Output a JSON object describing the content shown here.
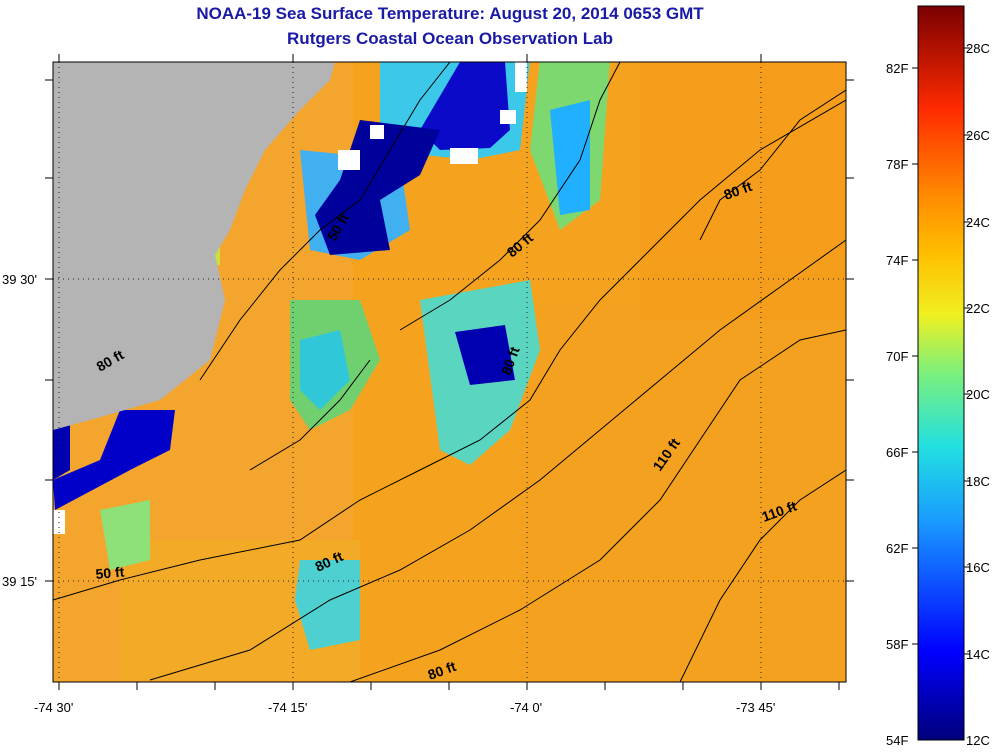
{
  "header": {
    "title": "NOAA-19 Sea Surface Temperature:  August 20, 2014 0653 GMT",
    "subtitle": "Rutgers Coastal Ocean Observation Lab"
  },
  "map": {
    "lat_labels": [
      {
        "text": "39 30'",
        "lat": 39.5
      },
      {
        "text": "39 15'",
        "lat": 39.25
      }
    ],
    "lon_labels": [
      {
        "text": "-74 30'",
        "lon": -74.5
      },
      {
        "text": "-74 15'",
        "lon": -74.25
      },
      {
        "text": "-74 0'",
        "lon": -74.0
      },
      {
        "text": "-73 45'",
        "lon": -73.75
      }
    ],
    "contour_labels": [
      "50 ft",
      "80 ft",
      "80 ft",
      "80 ft",
      "80 ft",
      "80 ft",
      "110 ft",
      "110 ft",
      "50 ft",
      "80 ft"
    ],
    "colors": {
      "land": "#b4b4b4",
      "ocean_warm": "#f5a623",
      "cold_core": "#00008b"
    }
  },
  "colorbar": {
    "range_c": [
      12,
      29
    ],
    "fahrenheit_labels": [
      "82F",
      "78F",
      "74F",
      "70F",
      "66F",
      "62F",
      "58F",
      "54F"
    ],
    "celsius_labels": [
      "28C",
      "26C",
      "24C",
      "22C",
      "20C",
      "18C",
      "16C",
      "14C",
      "12C"
    ]
  }
}
